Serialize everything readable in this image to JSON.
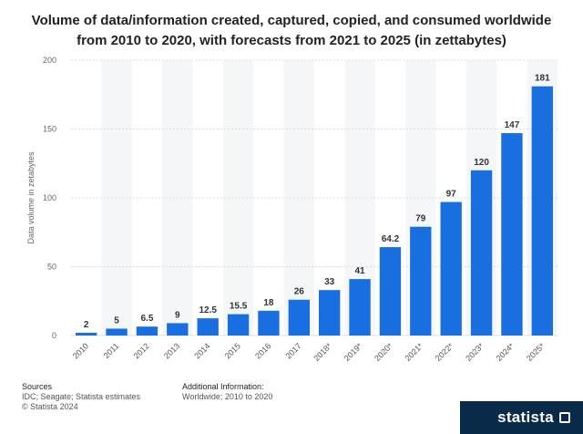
{
  "title": {
    "line1": "Volume of data/information created, captured, copied, and consumed worldwide",
    "line2": "from 2010 to 2020, with forecasts from 2021 to 2025 (in zettabytes)"
  },
  "chart_data": {
    "type": "bar",
    "title": "Volume of data/information created, captured, copied, and consumed worldwide from 2010 to 2020, with forecasts from 2021 to 2025 (in zettabytes)",
    "xlabel": "",
    "ylabel": "Data volume in zetabytes",
    "ylim": [
      0,
      200
    ],
    "yticks": [
      0,
      50,
      100,
      150,
      200
    ],
    "grid": true,
    "bar_color": "#1a6fe0",
    "categories": [
      "2010",
      "2011",
      "2012",
      "2013",
      "2014",
      "2015",
      "2016",
      "2017",
      "2018*",
      "2019*",
      "2020*",
      "2021*",
      "2022*",
      "2023*",
      "2024*",
      "2025*"
    ],
    "values": [
      2,
      5,
      6.5,
      9,
      12.5,
      15.5,
      18,
      26,
      33,
      41,
      64.2,
      79,
      97,
      120,
      147,
      181
    ],
    "value_labels": [
      "2",
      "5",
      "6.5",
      "9",
      "12.5",
      "15.5",
      "18",
      "26",
      "33",
      "41",
      "64.2",
      "79",
      "97",
      "120",
      "147",
      "181"
    ]
  },
  "footer": {
    "sources_heading": "Sources",
    "sources_text": "IDC; Seagate; Statista estimates",
    "copyright": "© Statista 2024",
    "additional_heading": "Additional Information:",
    "additional_text": "Worldwide; 2010 to 2020",
    "brand": "statista"
  }
}
